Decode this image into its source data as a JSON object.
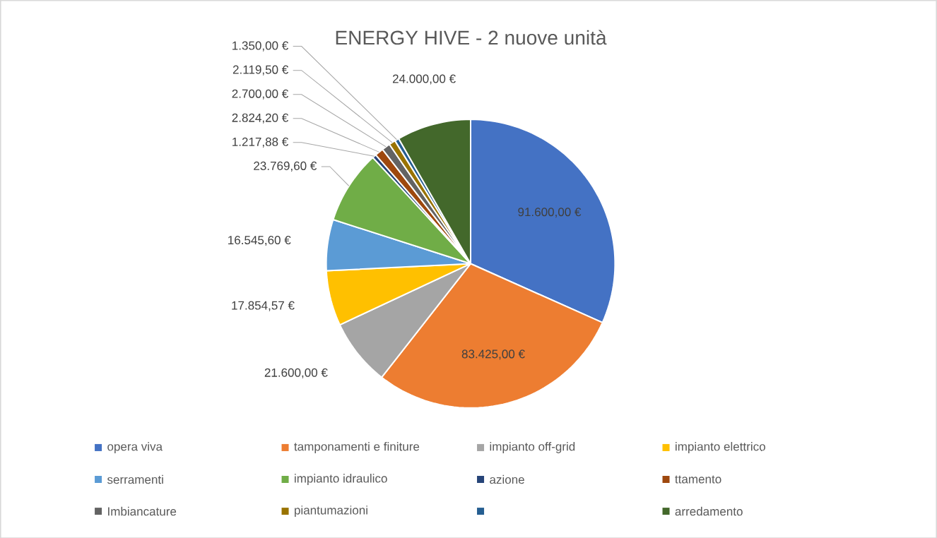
{
  "chart_data": {
    "type": "pie",
    "title": "ENERGY HIVE - 2 nuove unità",
    "categories": [
      "opera viva",
      "tamponamenti e finiture",
      "impianto off-grid",
      "impianto elettrico",
      "serramenti",
      "impianto idraulico",
      "azione",
      "ttamento",
      "Imbiancature",
      "piantumazioni",
      null,
      "arredamento"
    ],
    "values": [
      91600,
      83425,
      21600,
      17854.57,
      16545.6,
      23769.6,
      1217.88,
      2824.2,
      2700,
      2119.5,
      1350,
      24000
    ],
    "colors": [
      "#4472c4",
      "#ed7d31",
      "#a5a5a5",
      "#ffc000",
      "#5b9bd5",
      "#70ad47",
      "#264478",
      "#9e480e",
      "#636363",
      "#997300",
      "#255e91",
      "#43682b"
    ],
    "value_labels": [
      "91.600,00 €",
      "83.425,00 €",
      "21.600,00 €",
      "17.854,57 €",
      "16.545,60 €",
      "23.769,60 €",
      "1.217,88 €",
      "2.824,20 €",
      "2.700,00 €",
      "2.119,50 €",
      "1.350,00 €",
      "24.000,00 €"
    ],
    "legend": "bottom"
  }
}
